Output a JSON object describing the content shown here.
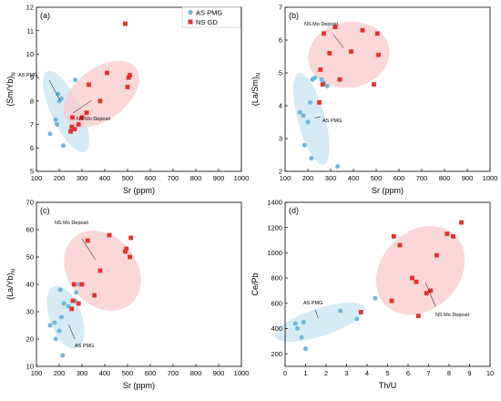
{
  "colors": {
    "as_pmg": "#6cb9dc",
    "ns_gd": "#e8302a",
    "ellipse_blue": "#cfe7f3",
    "ellipse_red": "#f8cbcb"
  },
  "legend": {
    "items": [
      {
        "label": "AS PMG",
        "marker": "circle"
      },
      {
        "label": "NS GD",
        "marker": "square"
      }
    ]
  },
  "chart_data": [
    {
      "type": "scatter",
      "panel_label": "(a)",
      "xlabel": "Sr (ppm)",
      "ylabel": "(Sm/Yb)N",
      "ylabel_main": "(Sm/Yb)",
      "ylabel_sub": "N",
      "xlim": [
        100,
        1000
      ],
      "ylim": [
        5,
        12
      ],
      "xticks": [
        "100",
        "200",
        "300",
        "400",
        "500",
        "600",
        "700",
        "800",
        "900",
        "1000"
      ],
      "yticks": [
        "5",
        "6",
        "7",
        "8",
        "9",
        "10",
        "11",
        "12"
      ],
      "series": [
        {
          "name": "AS PMG",
          "marker": "circle",
          "points": [
            [
              160,
              6.6
            ],
            [
              185,
              7.2
            ],
            [
              190,
              7.0
            ],
            [
              195,
              8.3
            ],
            [
              200,
              8.0
            ],
            [
              210,
              8.1
            ],
            [
              218,
              6.1
            ],
            [
              270,
              8.9
            ]
          ]
        },
        {
          "name": "NS GD",
          "marker": "square",
          "points": [
            [
              250,
              6.7
            ],
            [
              255,
              6.9
            ],
            [
              258,
              7.3
            ],
            [
              268,
              6.8
            ],
            [
              285,
              7.0
            ],
            [
              300,
              7.3
            ],
            [
              320,
              7.5
            ],
            [
              330,
              8.7
            ],
            [
              380,
              8.0
            ],
            [
              410,
              9.2
            ],
            [
              490,
              11.3
            ],
            [
              500,
              8.6
            ],
            [
              505,
              9.0
            ],
            [
              510,
              9.1
            ]
          ]
        }
      ],
      "ellipses": [
        {
          "group": "AS PMG",
          "label": "AS PMG",
          "cx": 230,
          "cy": 7.55,
          "rx": 65,
          "ry": 1.9,
          "rotate": -25
        },
        {
          "group": "NS GD",
          "label": "NS Mo Deposit",
          "cx": 385,
          "cy": 8.3,
          "rx": 190,
          "ry": 1.1,
          "rotate": -37
        }
      ]
    },
    {
      "type": "scatter",
      "panel_label": "(b)",
      "xlabel": "Sr (ppm)",
      "ylabel": "(La/Sm)N",
      "ylabel_main": "(La/Sm)",
      "ylabel_sub": "N",
      "xlim": [
        100,
        1000
      ],
      "ylim": [
        2,
        7
      ],
      "xticks": [
        "100",
        "200",
        "300",
        "400",
        "500",
        "600",
        "700",
        "800",
        "900",
        "1000"
      ],
      "yticks": [
        "2",
        "3",
        "4",
        "5",
        "6",
        "7"
      ],
      "series": [
        {
          "name": "AS PMG",
          "marker": "circle",
          "points": [
            [
              165,
              3.8
            ],
            [
              180,
              3.7
            ],
            [
              185,
              2.8
            ],
            [
              200,
              3.5
            ],
            [
              210,
              4.1
            ],
            [
              215,
              2.4
            ],
            [
              220,
              4.8
            ],
            [
              230,
              4.85
            ],
            [
              260,
              4.8
            ],
            [
              270,
              4.7
            ],
            [
              285,
              4.6
            ],
            [
              330,
              2.15
            ]
          ]
        },
        {
          "name": "NS GD",
          "marker": "square",
          "points": [
            [
              250,
              4.1
            ],
            [
              255,
              5.1
            ],
            [
              265,
              4.65
            ],
            [
              270,
              6.2
            ],
            [
              295,
              5.6
            ],
            [
              320,
              6.4
            ],
            [
              340,
              4.8
            ],
            [
              390,
              5.65
            ],
            [
              440,
              6.3
            ],
            [
              490,
              4.65
            ],
            [
              505,
              6.2
            ],
            [
              510,
              5.55
            ]
          ]
        }
      ],
      "ellipses": [
        {
          "group": "AS PMG",
          "label": "AS PMG",
          "cx": 215,
          "cy": 3.6,
          "rx": 60,
          "ry": 1.45,
          "rotate": -15
        },
        {
          "group": "NS GD",
          "label": "NS Mo Deposit",
          "cx": 380,
          "cy": 5.55,
          "rx": 180,
          "ry": 1.0,
          "rotate": -10
        }
      ]
    },
    {
      "type": "scatter",
      "panel_label": "(c)",
      "xlabel": "Sr (ppm)",
      "ylabel": "(La/Yb)N",
      "ylabel_main": "(La/Yb)",
      "ylabel_sub": "N",
      "xlim": [
        100,
        1000
      ],
      "ylim": [
        10,
        70
      ],
      "xticks": [
        "100",
        "200",
        "300",
        "400",
        "500",
        "600",
        "700",
        "800",
        "900",
        "1000"
      ],
      "yticks": [
        "10",
        "20",
        "30",
        "40",
        "50",
        "60",
        "70"
      ],
      "series": [
        {
          "name": "AS PMG",
          "marker": "circle",
          "points": [
            [
              160,
              25
            ],
            [
              180,
              26
            ],
            [
              185,
              20
            ],
            [
              200,
              23
            ],
            [
              205,
              38
            ],
            [
              210,
              28
            ],
            [
              215,
              14
            ],
            [
              220,
              33
            ],
            [
              240,
              32
            ],
            [
              270,
              34
            ],
            [
              275,
              37
            ],
            [
              285,
              40
            ]
          ]
        },
        {
          "name": "NS GD",
          "marker": "square",
          "points": [
            [
              255,
              31
            ],
            [
              260,
              34
            ],
            [
              265,
              40
            ],
            [
              285,
              33
            ],
            [
              300,
              40
            ],
            [
              325,
              56
            ],
            [
              355,
              36
            ],
            [
              380,
              45
            ],
            [
              420,
              58
            ],
            [
              490,
              52
            ],
            [
              495,
              53
            ],
            [
              510,
              50
            ],
            [
              515,
              57
            ]
          ]
        }
      ],
      "ellipses": [
        {
          "group": "AS PMG",
          "label": "AS PMG",
          "cx": 228,
          "cy": 28,
          "rx": 70,
          "ry": 12,
          "rotate": -20
        },
        {
          "group": "NS GD",
          "label": "NS Mo Deposit",
          "cx": 390,
          "cy": 45,
          "rx": 150,
          "ry": 16,
          "rotate": -40
        }
      ]
    },
    {
      "type": "scatter",
      "panel_label": "(d)",
      "xlabel": "Th/U",
      "ylabel": "Ce/Pb",
      "xlim": [
        0,
        10
      ],
      "ylim": [
        100,
        1400
      ],
      "xticks": [
        "0",
        "1",
        "2",
        "3",
        "4",
        "5",
        "6",
        "7",
        "8",
        "9",
        "10"
      ],
      "yticks": [
        "200",
        "400",
        "600",
        "800",
        "1000",
        "1200",
        "1400"
      ],
      "series": [
        {
          "name": "AS PMG",
          "marker": "circle",
          "points": [
            [
              0.5,
              440
            ],
            [
              0.6,
              400
            ],
            [
              0.8,
              330
            ],
            [
              0.9,
              450
            ],
            [
              1.0,
              240
            ],
            [
              2.7,
              540
            ],
            [
              3.5,
              475
            ],
            [
              4.4,
              640
            ]
          ]
        },
        {
          "name": "NS GD",
          "marker": "square",
          "points": [
            [
              3.7,
              530
            ],
            [
              5.2,
              620
            ],
            [
              5.3,
              1130
            ],
            [
              5.6,
              1060
            ],
            [
              6.2,
              800
            ],
            [
              6.4,
              770
            ],
            [
              6.5,
              500
            ],
            [
              6.9,
              680
            ],
            [
              7.1,
              700
            ],
            [
              7.4,
              980
            ],
            [
              7.9,
              1150
            ],
            [
              8.2,
              1130
            ],
            [
              8.6,
              1240
            ]
          ]
        }
      ],
      "ellipses": [
        {
          "group": "AS PMG",
          "label": "AS PMG",
          "cx": 1.7,
          "cy": 450,
          "rx": 2.3,
          "ry": 110,
          "rotate": -18
        },
        {
          "group": "NS GD",
          "label": "NS Mo Deposit",
          "cx": 6.6,
          "cy": 860,
          "rx": 1.9,
          "ry": 390,
          "rotate": 45
        }
      ]
    }
  ]
}
